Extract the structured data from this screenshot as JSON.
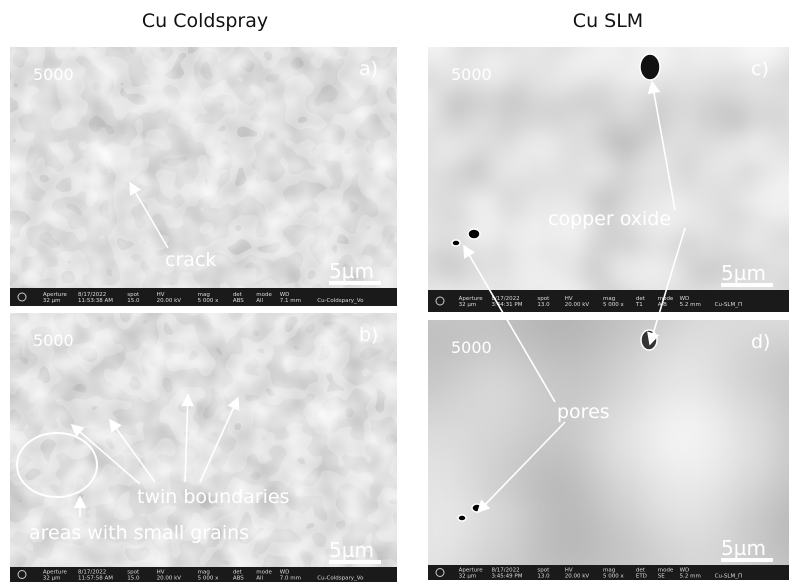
{
  "columns": [
    "Cu Coldspray",
    "Cu SLM"
  ],
  "panels": [
    {
      "label": "a)",
      "magnification": "5000",
      "scale_bar": "5µm",
      "info": [
        [
          "Aperture",
          "32 µm"
        ],
        [
          "8/17/2022",
          "11:53:38 AM"
        ],
        [
          "spot",
          "15.0"
        ],
        [
          "HV",
          "20.00 kV"
        ],
        [
          "mag",
          "5 000 x"
        ],
        [
          "det",
          "ABS"
        ],
        [
          "mode",
          "All"
        ],
        [
          "WD",
          "7.1 mm"
        ],
        [
          "",
          "Cu-Coldspary_Vo"
        ]
      ]
    },
    {
      "label": "b)",
      "magnification": "5000",
      "scale_bar": "5µm",
      "info": [
        [
          "Aperture",
          "32 µm"
        ],
        [
          "8/17/2022",
          "11:57:58 AM"
        ],
        [
          "spot",
          "15.0"
        ],
        [
          "HV",
          "20.00 kV"
        ],
        [
          "mag",
          "5 000 x"
        ],
        [
          "det",
          "ABS"
        ],
        [
          "mode",
          "All"
        ],
        [
          "WD",
          "7.0 mm"
        ],
        [
          "",
          "Cu-Coldspary_Vo"
        ]
      ]
    },
    {
      "label": "c)",
      "magnification": "5000",
      "scale_bar": "5µm",
      "info": [
        [
          "Aperture",
          "32 µm"
        ],
        [
          "8/17/2022",
          "3:44:31 PM"
        ],
        [
          "spot",
          "13.0"
        ],
        [
          "HV",
          "20.00 kV"
        ],
        [
          "mag",
          "5 000 x"
        ],
        [
          "det",
          "T1"
        ],
        [
          "mode",
          "A-B"
        ],
        [
          "WD",
          "5.2 mm"
        ],
        [
          "",
          "Cu-SLM_Π"
        ]
      ]
    },
    {
      "label": "d)",
      "magnification": "5000",
      "scale_bar": "5µm",
      "info": [
        [
          "Aperture",
          "32 µm"
        ],
        [
          "8/17/2022",
          "3:45:49 PM"
        ],
        [
          "spot",
          "13.0"
        ],
        [
          "HV",
          "20.00 kV"
        ],
        [
          "mag",
          "5 000 x"
        ],
        [
          "det",
          "ETD"
        ],
        [
          "mode",
          "SE"
        ],
        [
          "WD",
          "5.2 mm"
        ],
        [
          "",
          "Cu-SLM_Π"
        ]
      ]
    }
  ],
  "annotations": {
    "crack": "crack",
    "twin_boundaries": "twin boundaries",
    "small_grains": "areas with small grains",
    "copper_oxide": "copper oxide",
    "pores": "pores"
  }
}
